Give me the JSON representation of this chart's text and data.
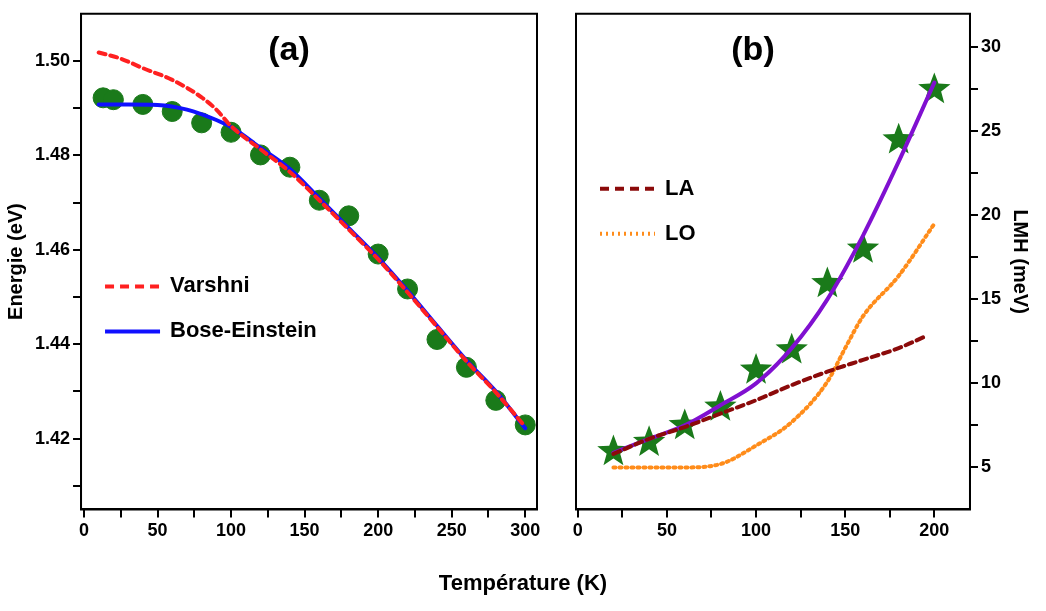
{
  "chart_data": [
    {
      "type": "line",
      "title": "(a)",
      "xlabel": "Température (K)",
      "ylabel": "Energie (eV)",
      "xlim": [
        -2,
        308
      ],
      "xticks": [
        0,
        {
          "value": 25,
          "label": null
        },
        50,
        {
          "value": 75,
          "label": null
        },
        100,
        {
          "value": 125,
          "label": null
        },
        150,
        {
          "value": 175,
          "label": null
        },
        200,
        {
          "value": 225,
          "label": null
        },
        250,
        {
          "value": 275,
          "label": null
        },
        300
      ],
      "ylim": [
        1.405,
        1.51
      ],
      "yticks": [
        {
          "value": 1.41,
          "label": null
        },
        {
          "value": 1.42,
          "label": "1.42"
        },
        {
          "value": 1.43,
          "label": null
        },
        {
          "value": 1.44,
          "label": "1.44"
        },
        {
          "value": 1.45,
          "label": null
        },
        {
          "value": 1.46,
          "label": "1.46"
        },
        {
          "value": 1.47,
          "label": null
        },
        {
          "value": 1.48,
          "label": "1.48"
        },
        {
          "value": 1.49,
          "label": null
        },
        {
          "value": 1.5,
          "label": "1.50"
        }
      ],
      "grid": false,
      "legend": "center left",
      "series": [
        {
          "type": "scatter",
          "marker": "circle",
          "color": "#1a7a1a",
          "x": [
            13,
            20,
            40,
            60,
            80,
            100,
            120,
            140,
            160,
            180,
            200,
            220,
            240,
            260,
            280,
            300
          ],
          "values": [
            1.4922,
            1.4918,
            1.4908,
            1.4893,
            1.4869,
            1.4849,
            1.4801,
            1.4775,
            1.4705,
            1.4672,
            1.4591,
            1.4517,
            1.441,
            1.4351,
            1.4281,
            1.4229
          ]
        },
        {
          "name": "Varshni",
          "type": "line",
          "line_style": "dashed",
          "color": "#ff2020",
          "x": [
            10,
            25,
            40,
            60,
            80,
            90,
            100,
            120,
            140,
            160,
            180,
            200,
            220,
            240,
            260,
            280,
            300
          ],
          "values": [
            1.5018,
            1.5005,
            1.4985,
            1.496,
            1.4923,
            1.4897,
            1.4862,
            1.4813,
            1.4765,
            1.4705,
            1.4643,
            1.458,
            1.451,
            1.4437,
            1.4364,
            1.4298,
            1.4225
          ]
        },
        {
          "name": "Bose-Einstein",
          "type": "line",
          "line_style": "solid",
          "color": "#1010ff",
          "x": [
            10,
            30,
            50,
            70,
            90,
            100,
            120,
            140,
            160,
            180,
            200,
            220,
            240,
            260,
            280,
            300
          ],
          "values": [
            1.4908,
            1.4908,
            1.4907,
            1.4897,
            1.4875,
            1.486,
            1.4816,
            1.4771,
            1.4709,
            1.4646,
            1.4583,
            1.4513,
            1.4439,
            1.4366,
            1.43,
            1.4222
          ]
        }
      ]
    },
    {
      "type": "line",
      "title": "(b)",
      "y2label": "LMH (meV)",
      "xlim": [
        -1,
        220
      ],
      "xticks": [
        0,
        {
          "value": 25,
          "label": null
        },
        50,
        {
          "value": 75,
          "label": null
        },
        100,
        {
          "value": 125,
          "label": null
        },
        150,
        {
          "value": 175,
          "label": null
        },
        200
      ],
      "y2lim": [
        2.5,
        32
      ],
      "y2ticks": [
        5,
        {
          "value": 7.5,
          "label": null
        },
        10,
        {
          "value": 12.5,
          "label": null
        },
        15,
        {
          "value": 17.5,
          "label": null
        },
        20,
        {
          "value": 22.5,
          "label": null
        },
        25,
        {
          "value": 27.5,
          "label": null
        },
        30
      ],
      "grid": false,
      "legend": "top left",
      "series": [
        {
          "type": "line",
          "axis": "y2",
          "line_style": "solid",
          "color": "#8010d0",
          "x": [
            20,
            40,
            60,
            80,
            100,
            120,
            140,
            160,
            180,
            200
          ],
          "values": [
            5.87,
            6.7,
            7.5,
            8.7,
            10.0,
            12.1,
            15.0,
            18.8,
            23.2,
            27.9
          ]
        },
        {
          "name": "LA",
          "type": "line",
          "axis": "y2",
          "line_style": "dashed",
          "color": "#8b0a0a",
          "x": [
            20,
            40,
            60,
            80,
            100,
            120,
            140,
            160,
            180,
            195
          ],
          "values": [
            5.8,
            6.7,
            7.4,
            8.2,
            9.0,
            9.9,
            10.7,
            11.4,
            12.1,
            12.8
          ]
        },
        {
          "name": "LO",
          "type": "line",
          "axis": "y2",
          "line_style": "dotted",
          "color": "#ff8c1a",
          "x": [
            20,
            40,
            60,
            80,
            100,
            120,
            140,
            150,
            160,
            180,
            200
          ],
          "values": [
            5.0,
            5.0,
            5.0,
            5.2,
            6.3,
            7.7,
            10.1,
            12.1,
            14.0,
            16.4,
            19.5
          ]
        },
        {
          "type": "scatter",
          "axis": "y2",
          "marker": "star",
          "color": "#1a7a1a",
          "x": [
            20,
            40,
            60,
            80,
            100,
            120,
            140,
            160,
            180,
            200
          ],
          "values": [
            5.95,
            6.5,
            7.5,
            8.6,
            10.8,
            12.0,
            15.95,
            18.0,
            24.5,
            27.5
          ]
        }
      ]
    }
  ]
}
